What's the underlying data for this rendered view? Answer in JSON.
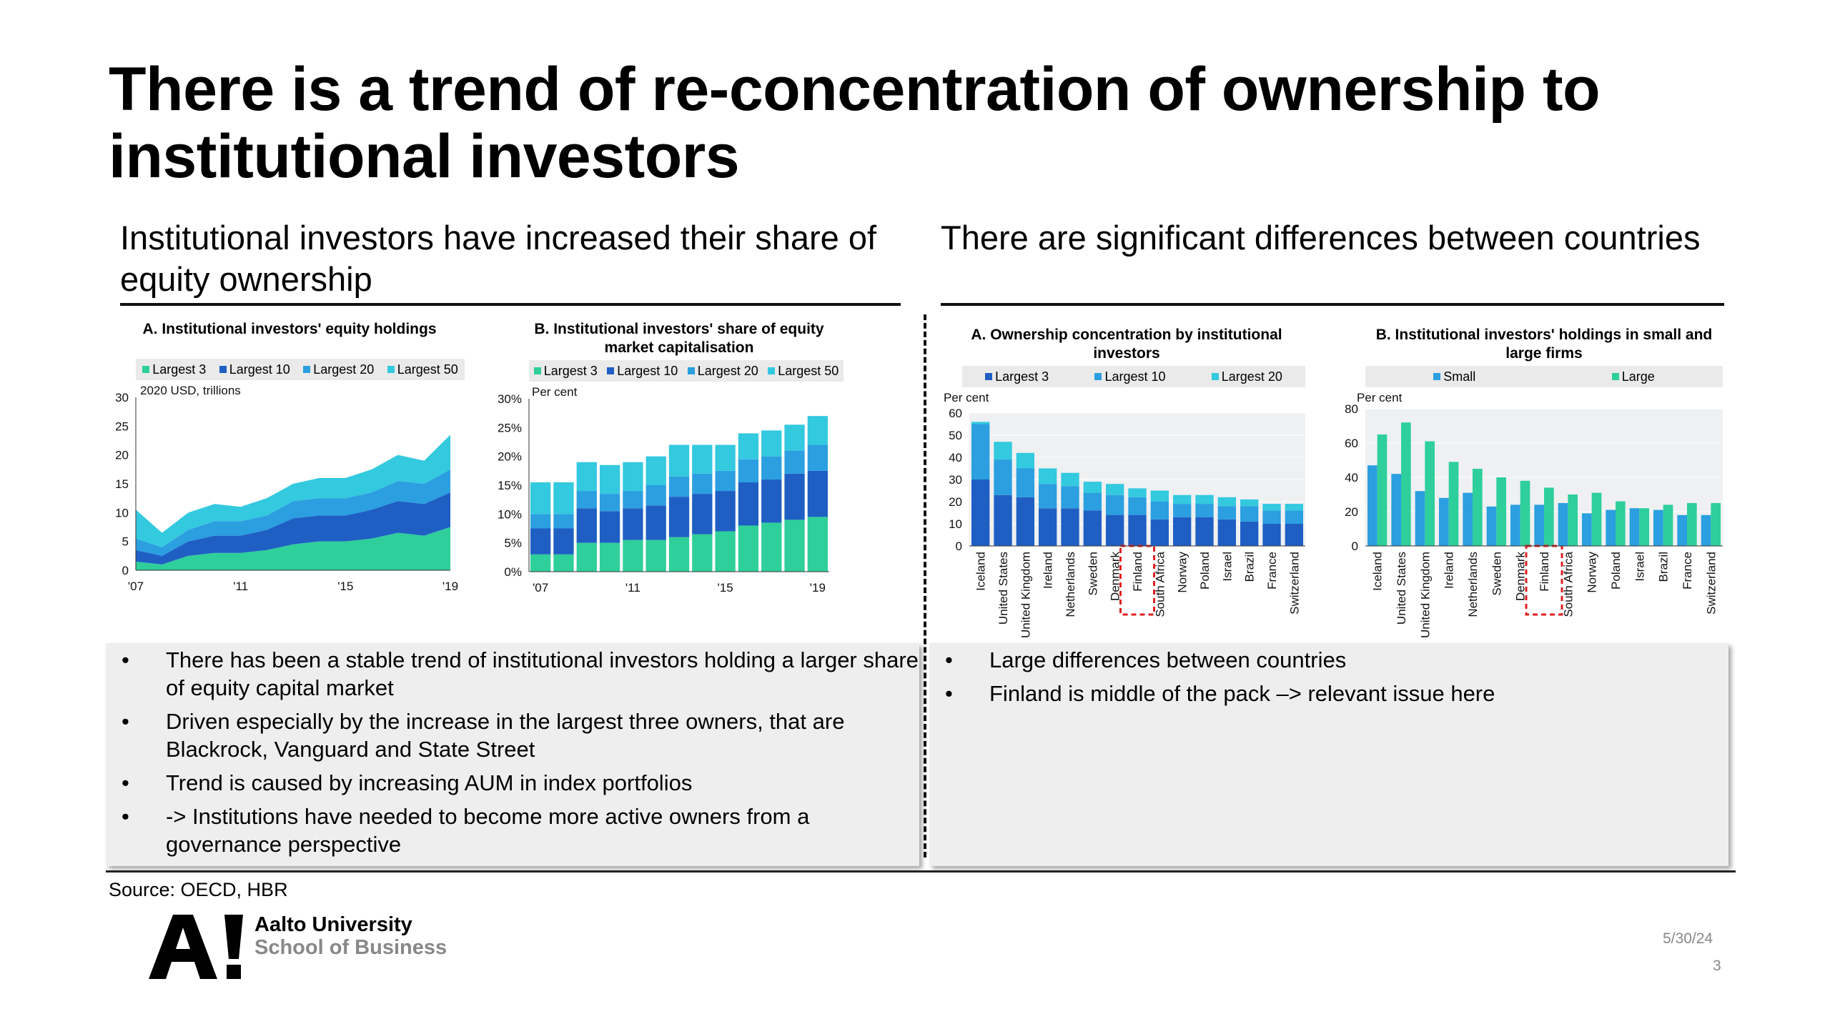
{
  "slide": {
    "title": "There is a trend of re-concentration of ownership to institutional investors",
    "left_heading": "Institutional investors have increased their share of equity ownership",
    "right_heading": "There are significant differences between countries",
    "source": "Source: OECD, HBR",
    "logo_line1": "Aalto University",
    "logo_line2": "School of Business",
    "date": "5/30/24",
    "page_number": "3"
  },
  "left_notes": [
    "There has been a stable trend of institutional investors holding a larger share of equity capital market",
    "Driven especially by the increase in the largest  three owners, that are Blackrock, Vanguard and State Street",
    "Trend is caused by increasing AUM in index portfolios",
    "-> Institutions have needed to become more active owners from a governance perspective"
  ],
  "right_notes": [
    "Large differences between countries",
    "Finland is middle of the pack –> relevant issue here"
  ],
  "colors": {
    "largest3": "#2ecf9a",
    "largest10": "#1f5fc4",
    "largest20": "#2b9fe0",
    "largest50": "#33c9df",
    "small": "#2b9fe0",
    "large": "#2ecf9a",
    "highlight": "#e02020"
  },
  "chart_data": [
    {
      "id": "equity-holdings",
      "type": "area",
      "title": "A. Institutional investors' equity holdings",
      "unit_label": "2020 USD, trillions",
      "x": [
        "2007",
        "2008",
        "2009",
        "2010",
        "2011",
        "2012",
        "2013",
        "2014",
        "2015",
        "2016",
        "2017",
        "2018",
        "2019"
      ],
      "xticks": [
        "'07",
        "'11",
        "'15",
        "'19"
      ],
      "ylim": [
        0,
        30
      ],
      "yticks": [
        "0",
        "5",
        "10",
        "15",
        "20",
        "25",
        "30"
      ],
      "series": [
        {
          "name": "Largest 3",
          "color_key": "largest3",
          "values": [
            1.5,
            1,
            2.5,
            3,
            3,
            3.5,
            4.5,
            5,
            5,
            5.5,
            6.5,
            6,
            7.5
          ]
        },
        {
          "name": "Largest 10",
          "color_key": "largest10",
          "values": [
            2,
            1.5,
            2.5,
            3,
            3,
            3.5,
            4.5,
            4.5,
            4.5,
            5,
            5.5,
            5.5,
            6
          ]
        },
        {
          "name": "Largest 20",
          "color_key": "largest20",
          "values": [
            2,
            1.5,
            2,
            2.5,
            2.5,
            2.5,
            3,
            3,
            3,
            3,
            3.5,
            3.5,
            4
          ]
        },
        {
          "name": "Largest 50",
          "color_key": "largest50",
          "values": [
            5,
            2.5,
            3,
            3,
            2.5,
            3,
            3,
            3.5,
            3.5,
            4,
            4.5,
            4,
            6
          ]
        }
      ]
    },
    {
      "id": "share-of-market-cap",
      "type": "bar",
      "title": "B. Institutional investors' share of equity market capitalisation",
      "unit_label": "Per cent",
      "x": [
        "2007",
        "2008",
        "2009",
        "2010",
        "2011",
        "2012",
        "2013",
        "2014",
        "2015",
        "2016",
        "2017",
        "2018",
        "2019"
      ],
      "xticks": [
        "'07",
        "'11",
        "'15",
        "'19"
      ],
      "ylim": [
        0,
        30
      ],
      "yticks": [
        "0%",
        "5%",
        "10%",
        "15%",
        "20%",
        "25%",
        "30%"
      ],
      "series": [
        {
          "name": "Largest 3",
          "color_key": "largest3",
          "values": [
            3,
            3,
            5,
            5,
            5.5,
            5.5,
            6,
            6.5,
            7,
            8,
            8.5,
            9,
            9.5
          ]
        },
        {
          "name": "Largest 10",
          "color_key": "largest10",
          "values": [
            4.5,
            4.5,
            6,
            5.5,
            5.5,
            6,
            7,
            7,
            7,
            7.5,
            7.5,
            8,
            8
          ]
        },
        {
          "name": "Largest 20",
          "color_key": "largest20",
          "values": [
            2.5,
            2.5,
            3,
            3,
            3,
            3.5,
            3.5,
            3.5,
            3.5,
            4,
            4,
            4,
            4.5
          ]
        },
        {
          "name": "Largest 50",
          "color_key": "largest50",
          "values": [
            5.5,
            5.5,
            5,
            5,
            5,
            5,
            5.5,
            5,
            4.5,
            4.5,
            4.5,
            4.5,
            5
          ]
        }
      ]
    },
    {
      "id": "ownership-concentration",
      "type": "bar",
      "title": "A. Ownership concentration by institutional investors",
      "unit_label": "Per cent",
      "categories": [
        "Iceland",
        "United States",
        "United Kingdom",
        "Ireland",
        "Netherlands",
        "Sweden",
        "Denmark",
        "Finland",
        "South Africa",
        "Norway",
        "Poland",
        "Israel",
        "Brazil",
        "France",
        "Switzerland"
      ],
      "highlight": "Finland",
      "ylim": [
        0,
        60
      ],
      "yticks": [
        "0",
        "10",
        "20",
        "30",
        "40",
        "50",
        "60"
      ],
      "series": [
        {
          "name": "Largest 3",
          "color_key": "largest10",
          "values": [
            30,
            23,
            22,
            17,
            17,
            16,
            14,
            14,
            12,
            13,
            13,
            12,
            11,
            10,
            10
          ]
        },
        {
          "name": "Largest 10",
          "color_key": "largest20",
          "values": [
            25,
            16,
            13,
            11,
            10,
            8,
            9,
            8,
            8,
            6,
            6,
            6,
            7,
            6,
            6
          ]
        },
        {
          "name": "Largest 20",
          "color_key": "largest50",
          "values": [
            1,
            8,
            7,
            7,
            6,
            5,
            5,
            4,
            5,
            4,
            4,
            4,
            3,
            3,
            3
          ]
        }
      ]
    },
    {
      "id": "small-large-firms",
      "type": "bar",
      "title": "B. Institutional investors' holdings in small and large firms",
      "unit_label": "Per cent",
      "categories": [
        "Iceland",
        "United States",
        "United Kingdom",
        "Ireland",
        "Netherlands",
        "Sweden",
        "Denmark",
        "Finland",
        "South Africa",
        "Norway",
        "Poland",
        "Israel",
        "Brazil",
        "France",
        "Switzerland"
      ],
      "highlight": "Finland",
      "ylim": [
        0,
        80
      ],
      "yticks": [
        "0",
        "20",
        "40",
        "60",
        "80"
      ],
      "series": [
        {
          "name": "Small",
          "color_key": "small",
          "values": [
            47,
            42,
            32,
            28,
            31,
            23,
            24,
            24,
            25,
            19,
            21,
            22,
            21,
            18,
            18
          ]
        },
        {
          "name": "Large",
          "color_key": "large",
          "values": [
            65,
            72,
            61,
            49,
            45,
            40,
            38,
            34,
            30,
            31,
            26,
            22,
            24,
            25,
            25
          ]
        }
      ]
    }
  ]
}
